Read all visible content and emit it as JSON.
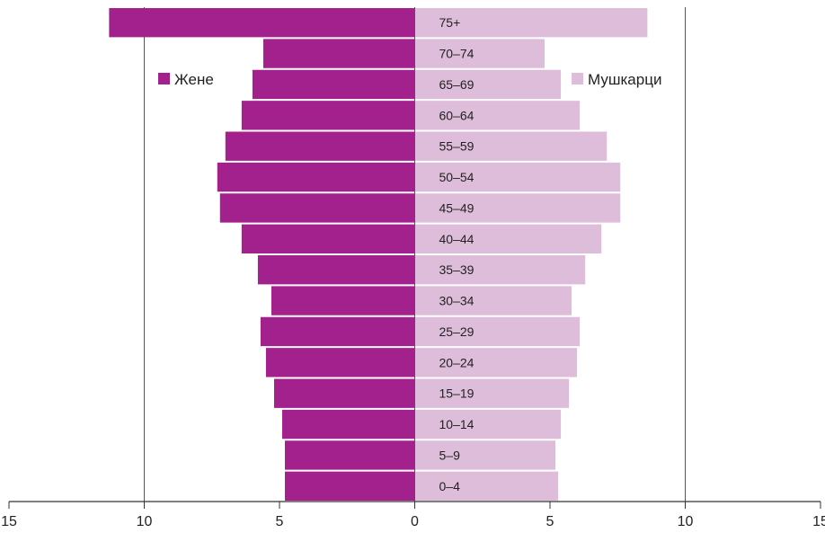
{
  "chart_data": {
    "type": "bar",
    "orientation": "horizontal",
    "layout": "population-pyramid",
    "categories": [
      "75+",
      "70–74",
      "65–69",
      "60–64",
      "55–59",
      "50–54",
      "45–49",
      "40–44",
      "35–39",
      "30–34",
      "25–29",
      "20–24",
      "15–19",
      "10–14",
      "5–9",
      "0–4"
    ],
    "series": [
      {
        "name": "Жене",
        "side": "left",
        "color": "#A3218C",
        "values": [
          11.3,
          5.6,
          6.0,
          6.4,
          7.0,
          7.3,
          7.2,
          6.4,
          5.8,
          5.3,
          5.7,
          5.5,
          5.2,
          4.9,
          4.8,
          4.8
        ]
      },
      {
        "name": "Мушкарци",
        "side": "right",
        "color": "#DEBDDA",
        "values": [
          8.6,
          4.8,
          5.4,
          6.1,
          7.1,
          7.6,
          7.6,
          6.9,
          6.3,
          5.8,
          6.1,
          6.0,
          5.7,
          5.4,
          5.2,
          5.3
        ]
      }
    ],
    "xlim": [
      -15,
      15
    ],
    "xticks": [
      "15",
      "10",
      "5",
      "0",
      "5",
      "10",
      "15"
    ],
    "xtick_values": [
      -15,
      -10,
      -5,
      0,
      5,
      10,
      15
    ],
    "grid_values": [
      -10,
      10
    ],
    "legend_placement": "upper, beside the bars"
  }
}
